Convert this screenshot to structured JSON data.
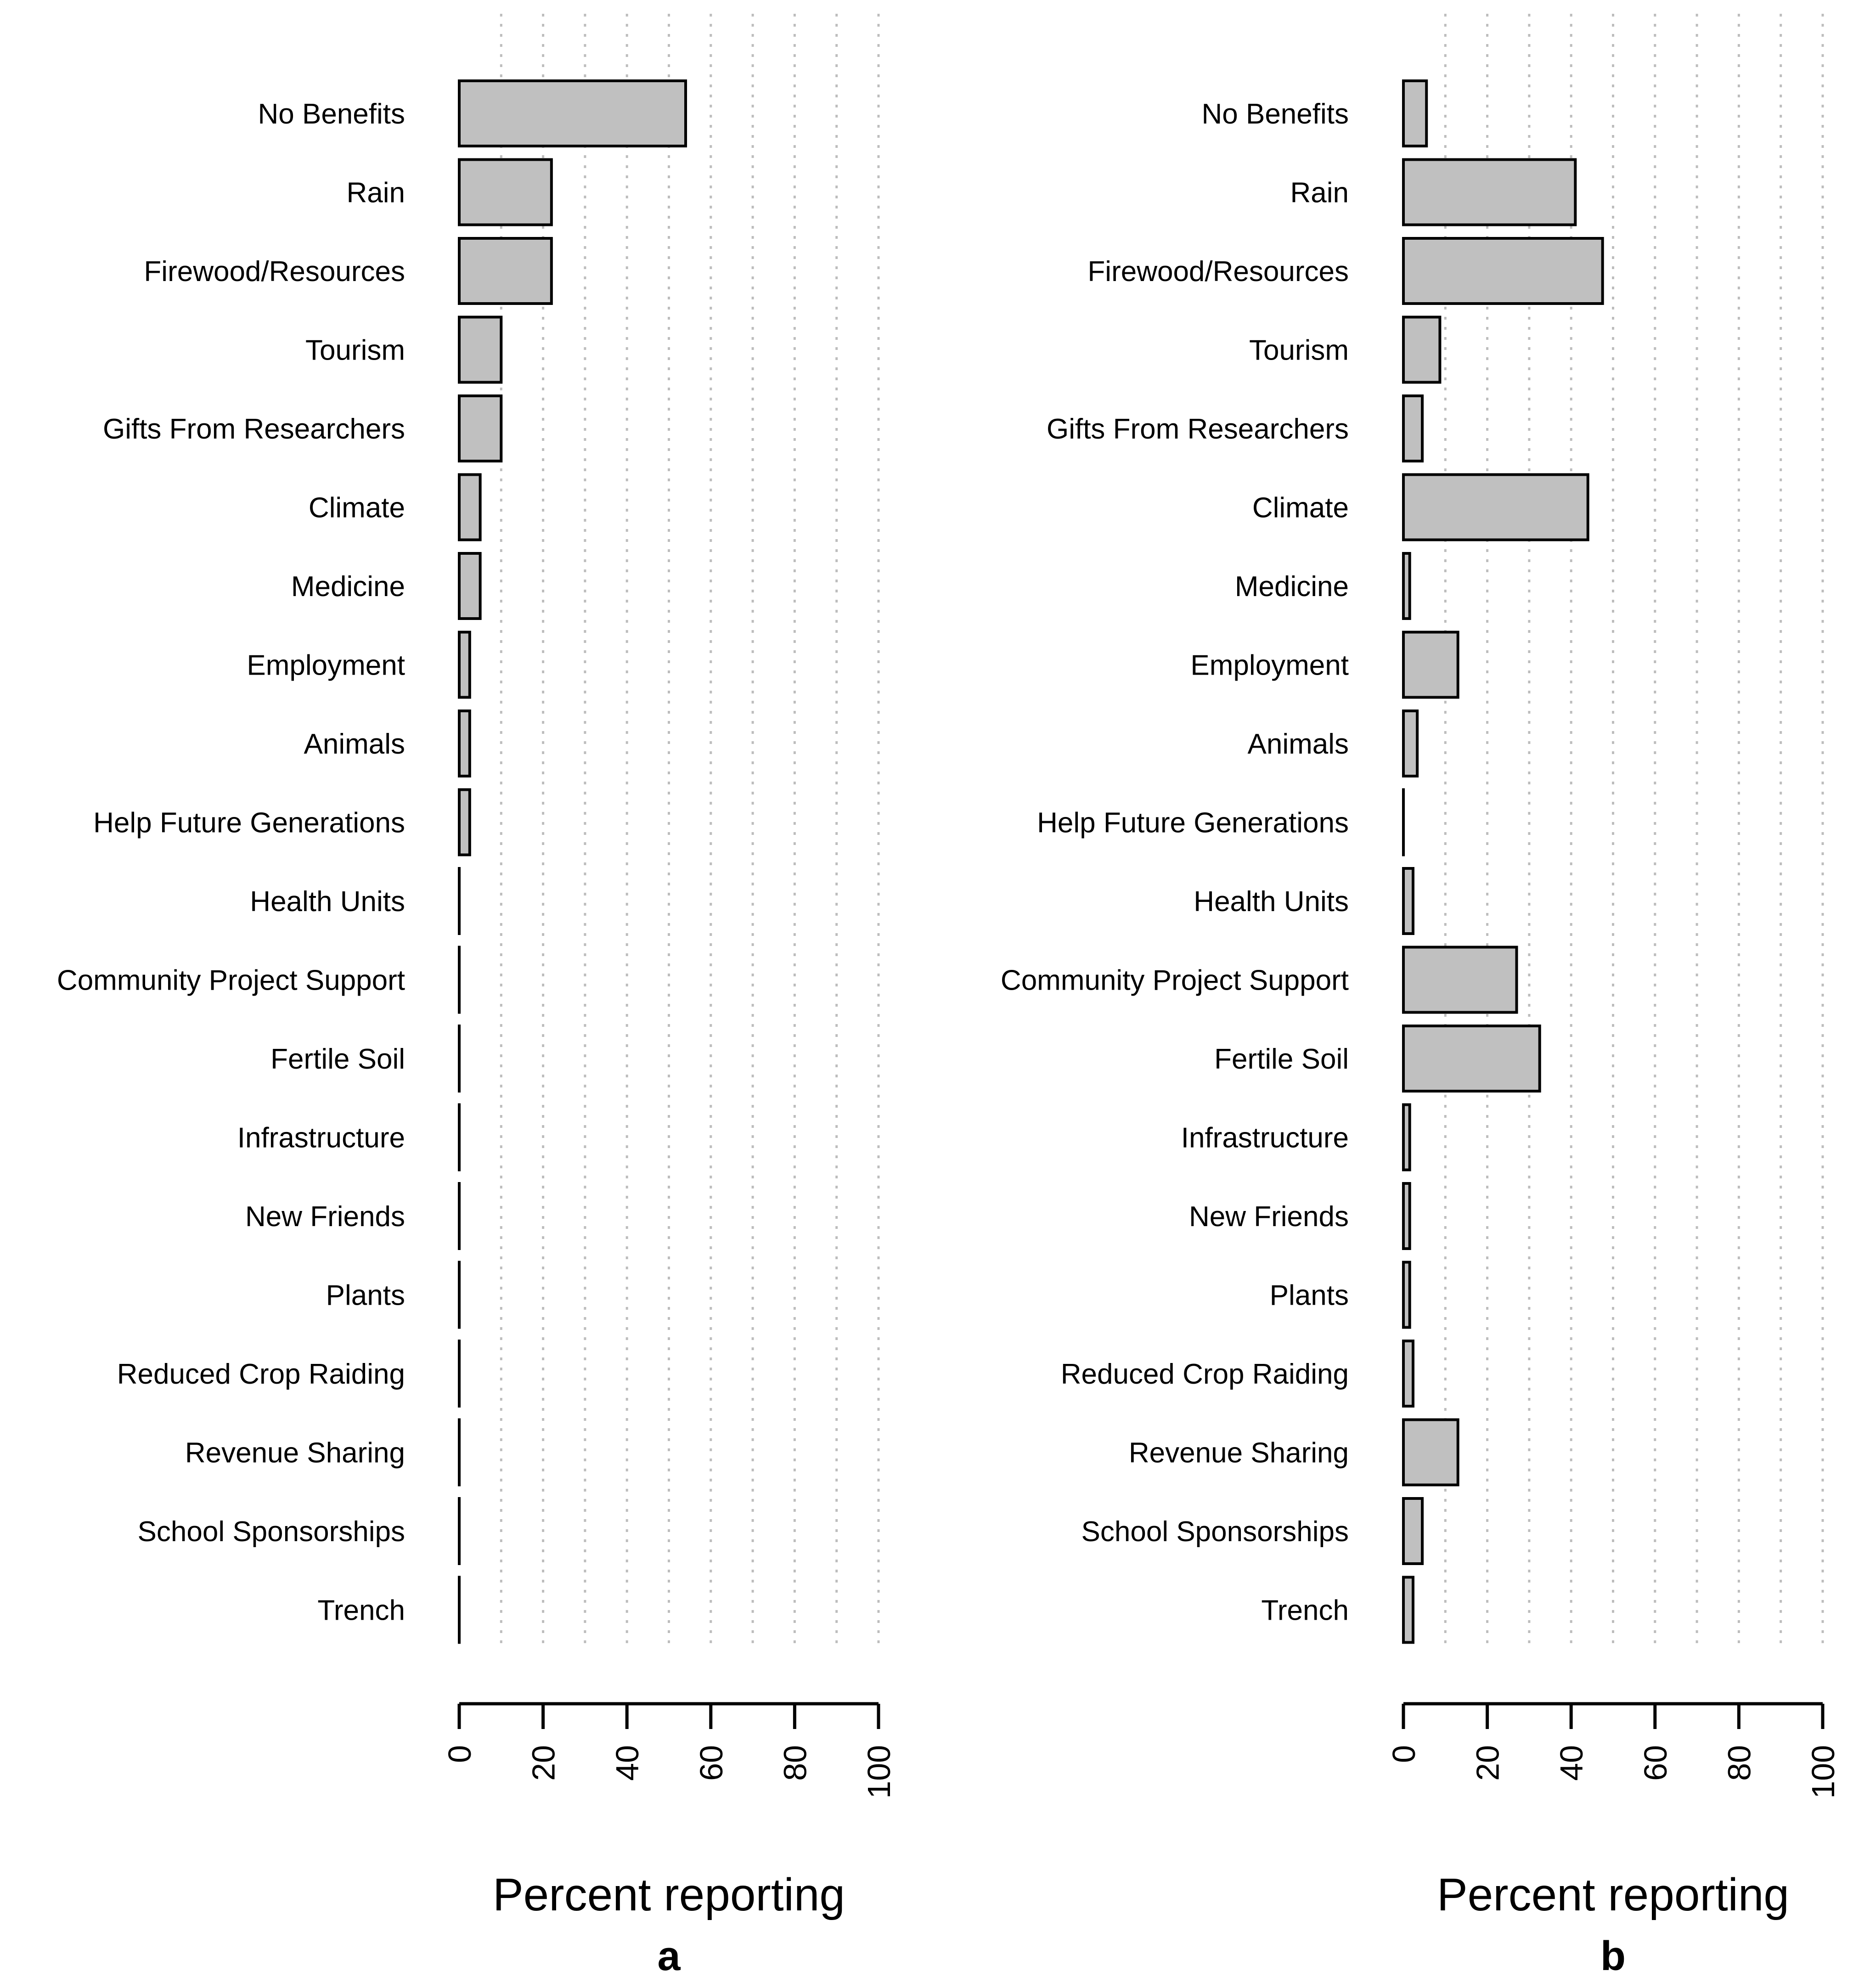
{
  "chart_data": [
    {
      "type": "bar",
      "orientation": "horizontal",
      "panel": "a",
      "xlabel": "Percent reporting",
      "xlim": [
        0,
        100
      ],
      "ticks": [
        "0",
        "20",
        "40",
        "60",
        "80",
        "100"
      ],
      "grid": "vertical dotted lines every 10",
      "categories": [
        "No Benefits",
        "Rain",
        "Firewood/Resources",
        "Tourism",
        "Gifts From Researchers",
        "Climate",
        "Medicine",
        "Employment",
        "Animals",
        "Help Future Generations",
        "Health Units",
        "Community Project Support",
        "Fertile Soil",
        "Infrastructure",
        "New Friends",
        "Plants",
        "Reduced Crop Raiding",
        "Revenue Sharing",
        "School Sponsorships",
        "Trench"
      ],
      "values": [
        54,
        22,
        22,
        10,
        10,
        5,
        5,
        2.5,
        2.5,
        2.5,
        0,
        0,
        0,
        0,
        0,
        0,
        0,
        0,
        0,
        0
      ]
    },
    {
      "type": "bar",
      "orientation": "horizontal",
      "panel": "b",
      "xlabel": "Percent reporting",
      "xlim": [
        0,
        100
      ],
      "ticks": [
        "0",
        "20",
        "40",
        "60",
        "80",
        "100"
      ],
      "grid": "vertical dotted lines every 10",
      "categories": [
        "No Benefits",
        "Rain",
        "Firewood/Resources",
        "Tourism",
        "Gifts From Researchers",
        "Climate",
        "Medicine",
        "Employment",
        "Animals",
        "Help Future Generations",
        "Health Units",
        "Community Project Support",
        "Fertile Soil",
        "Infrastructure",
        "New Friends",
        "Plants",
        "Reduced Crop Raiding",
        "Revenue Sharing",
        "School Sponsorships",
        "Trench"
      ],
      "values": [
        5.5,
        41,
        47.5,
        8.7,
        4.5,
        44,
        1.5,
        13,
        3.3,
        0,
        2.3,
        27,
        32.5,
        1.5,
        1.5,
        1.5,
        2.3,
        13,
        4.5,
        2.3
      ]
    }
  ]
}
